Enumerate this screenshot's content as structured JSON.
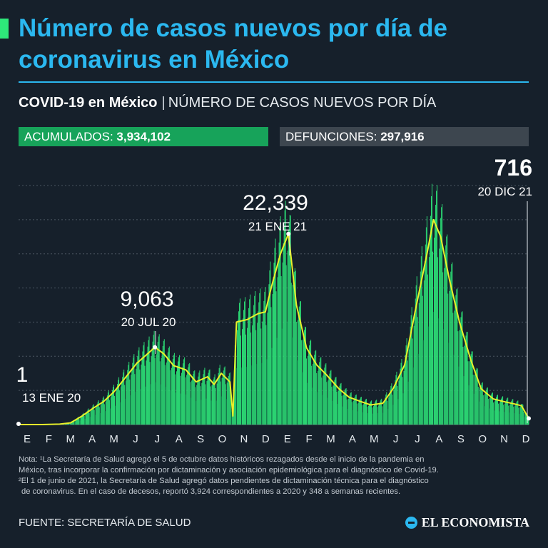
{
  "title": "Número de casos nuevos por día de coronavirus en México",
  "subtitle": {
    "bold": "COVID-19 en México",
    "separator": "|",
    "rest": "NÚMERO DE CASOS NUEVOS POR DÍA"
  },
  "stats": {
    "cases_label": "ACUMULADOS: ",
    "cases_value": "3,934,102",
    "deaths_label": "DEFUNCIONES: ",
    "deaths_value": "297,916"
  },
  "colors": {
    "background": "#16202b",
    "title": "#2bb8f0",
    "accent": "#2ee87a",
    "bars": "#2ee87a",
    "bars_dark": "#0f6e47",
    "line": "#e8f02a",
    "cases_box": "#17a35a",
    "deaths_box": "#3d464f"
  },
  "chart_data": {
    "type": "bar",
    "xlabel": "",
    "ylabel": "",
    "ylim": [
      0,
      28000
    ],
    "grid": true,
    "month_ticks": [
      "E",
      "F",
      "M",
      "A",
      "M",
      "J",
      "J",
      "A",
      "S",
      "O",
      "N",
      "D",
      "E",
      "F",
      "M",
      "A",
      "M",
      "J",
      "J",
      "A",
      "S",
      "O",
      "N",
      "D"
    ],
    "series": [
      {
        "points": [
          [
            "2020-01-13",
            1
          ],
          [
            "2020-02-15",
            0
          ],
          [
            "2020-03-10",
            50
          ],
          [
            "2020-03-25",
            200
          ],
          [
            "2020-04-10",
            1000
          ],
          [
            "2020-04-25",
            1900
          ],
          [
            "2020-05-10",
            2700
          ],
          [
            "2020-05-25",
            3900
          ],
          [
            "2020-06-10",
            5600
          ],
          [
            "2020-06-25",
            7200
          ],
          [
            "2020-07-10",
            8300
          ],
          [
            "2020-07-20",
            9063
          ],
          [
            "2020-08-01",
            8300
          ],
          [
            "2020-08-15",
            6900
          ],
          [
            "2020-09-01",
            6400
          ],
          [
            "2020-09-15",
            5000
          ],
          [
            "2020-10-01",
            5600
          ],
          [
            "2020-10-10",
            4700
          ],
          [
            "2020-10-20",
            6000
          ],
          [
            "2020-11-01",
            5000
          ],
          [
            "2020-11-05",
            1000
          ],
          [
            "2020-11-10",
            12000
          ],
          [
            "2020-11-25",
            12300
          ],
          [
            "2020-12-10",
            13000
          ],
          [
            "2020-12-20",
            13200
          ],
          [
            "2020-12-28",
            16000
          ],
          [
            "2021-01-10",
            20000
          ],
          [
            "2021-01-21",
            22339
          ],
          [
            "2021-02-01",
            14000
          ],
          [
            "2021-02-15",
            9000
          ],
          [
            "2021-03-01",
            7000
          ],
          [
            "2021-03-15",
            5800
          ],
          [
            "2021-04-01",
            4200
          ],
          [
            "2021-04-15",
            3200
          ],
          [
            "2021-05-01",
            2700
          ],
          [
            "2021-05-15",
            2300
          ],
          [
            "2021-06-01",
            2500
          ],
          [
            "2021-06-15",
            4200
          ],
          [
            "2021-07-01",
            7000
          ],
          [
            "2021-07-15",
            13000
          ],
          [
            "2021-08-01",
            20000
          ],
          [
            "2021-08-10",
            24000
          ],
          [
            "2021-08-20",
            22000
          ],
          [
            "2021-09-01",
            17000
          ],
          [
            "2021-09-15",
            12000
          ],
          [
            "2021-10-01",
            7500
          ],
          [
            "2021-10-15",
            4200
          ],
          [
            "2021-11-01",
            3000
          ],
          [
            "2021-11-15",
            2700
          ],
          [
            "2021-12-01",
            2400
          ],
          [
            "2021-12-10",
            2200
          ],
          [
            "2021-12-20",
            716
          ]
        ]
      }
    ],
    "annotations": [
      {
        "date": "2020-01-13",
        "value_label": "1",
        "date_label": "13 ENE 20"
      },
      {
        "date": "2020-07-20",
        "value_label": "9,063",
        "date_label": "20 JUL 20"
      },
      {
        "date": "2021-01-21",
        "value_label": "22,339",
        "date_label": "21 ENE 21"
      },
      {
        "date": "2021-12-20",
        "value_label": "716",
        "date_label": "20 DIC 21"
      }
    ]
  },
  "note": {
    "lines": [
      "Nota: ¹La Secretaría de Salud agregó el 5 de octubre datos históricos rezagados desde el inicio de la pandemia en",
      "México, tras incorporar la confirmación por dictaminación y asociación epidemiológica para el diagnóstico de Covid-19.",
      "²El 1 de junio de 2021, la Secretaría de Salud agregó datos pendientes de dictaminación técnica para el diagnóstico",
      "de coronavirus. En el caso de decesos, reportó 3,924 correspondientes a 2020 y 348 a semanas recientes."
    ]
  },
  "source": "FUENTE: SECRETARÍA DE SALUD",
  "logo": {
    "text": "EL ECONOMISTA",
    "icon": "el-economista-logo-icon"
  }
}
